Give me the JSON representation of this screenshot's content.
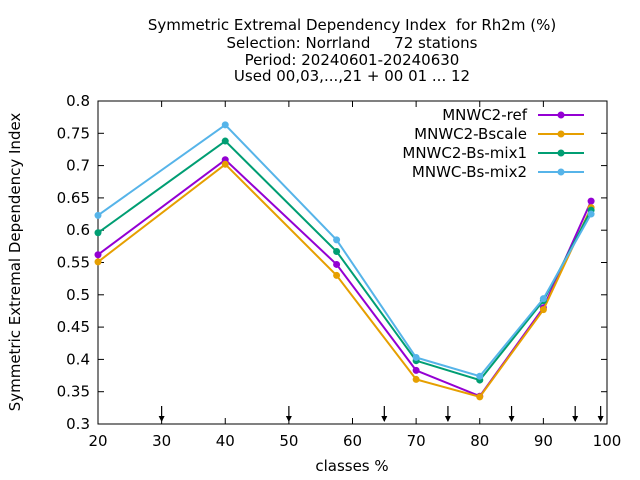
{
  "chart_data": {
    "type": "line",
    "title_lines": [
      "Symmetric Extremal Dependency Index  for Rh2m (%)",
      "Selection: Norrland     72 stations",
      "Period: 20240601-20240630",
      "Used 00,03,...,21 + 00 01 ... 12"
    ],
    "xlabel": "classes %",
    "ylabel": "Symmetric Extremal Dependency Index",
    "xlim": [
      20,
      100
    ],
    "ylim": [
      0.3,
      0.8
    ],
    "xticks": [
      20,
      30,
      40,
      50,
      60,
      70,
      80,
      90,
      100
    ],
    "yticks": [
      "0.3",
      "0.35",
      "0.4",
      "0.45",
      "0.5",
      "0.55",
      "0.6",
      "0.65",
      "0.7",
      "0.75",
      "0.8"
    ],
    "grid": false,
    "legend_position": "top-right",
    "arrow_markers_x": [
      30,
      50,
      65,
      75,
      85,
      95,
      99
    ],
    "x": [
      20,
      40,
      57.5,
      70,
      80,
      90,
      97.5
    ],
    "series": [
      {
        "name": "MNWC2-ref",
        "color": "#9400d3",
        "values": [
          0.562,
          0.709,
          0.547,
          0.383,
          0.343,
          0.48,
          0.645
        ]
      },
      {
        "name": "MNWC2-Bscale",
        "color": "#e69f00",
        "values": [
          0.551,
          0.702,
          0.53,
          0.369,
          0.342,
          0.477,
          0.635
        ]
      },
      {
        "name": "MNWC2-Bs-mix1",
        "color": "#009e73",
        "values": [
          0.596,
          0.738,
          0.567,
          0.398,
          0.368,
          0.491,
          0.631
        ]
      },
      {
        "name": "MNWC-Bs-mix2",
        "color": "#56b4e9",
        "values": [
          0.623,
          0.763,
          0.585,
          0.403,
          0.374,
          0.494,
          0.625
        ]
      }
    ]
  }
}
